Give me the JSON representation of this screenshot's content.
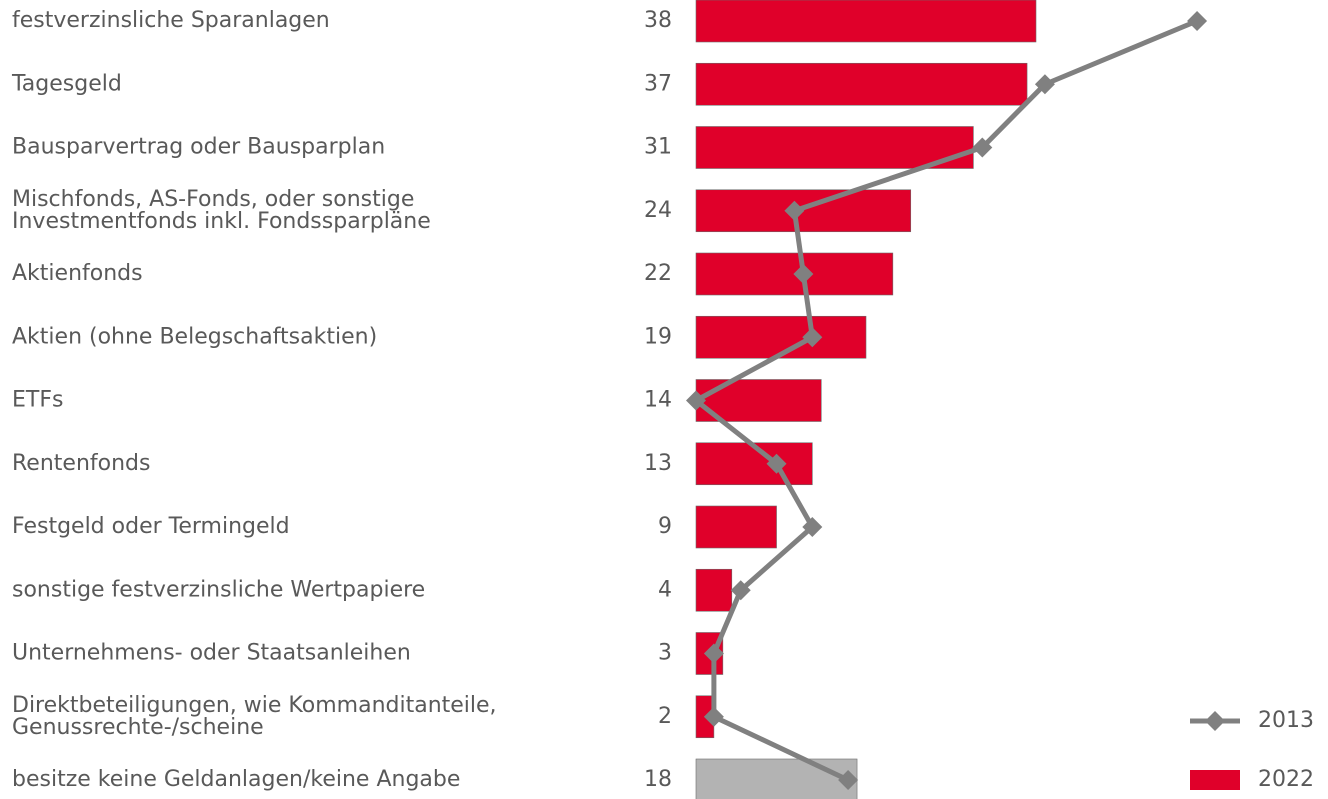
{
  "chart_data": {
    "type": "bar_line",
    "categories": [
      "festverzinsliche Sparanlagen",
      "Tagesgeld",
      "Bausparvertrag oder Bausparplan",
      "Mischfonds, AS-Fonds, oder sonstige\nInvestmentfonds inkl. Fondssparpläne",
      "Aktienfonds",
      "Aktien (ohne Belegschaftsaktien)",
      "ETFs",
      "Rentenfonds",
      "Festgeld oder Termingeld",
      "sonstige festverzinsliche Wertpapiere",
      "Unternehmens- oder Staatsanleihen",
      "Direktbeteiligungen, wie Kommanditanteile,\nGenussrechte-/scheine",
      "besitze keine Geldanlagen/keine Angabe"
    ],
    "series": [
      {
        "name": "2013",
        "type": "line",
        "color": "#808080",
        "values": [
          56,
          39,
          32,
          11,
          12,
          13,
          0,
          9,
          13,
          5,
          2,
          2,
          17
        ]
      },
      {
        "name": "2022",
        "type": "bar",
        "color": "#e0002a",
        "colors": [
          "#e0002a",
          "#e0002a",
          "#e0002a",
          "#e0002a",
          "#e0002a",
          "#e0002a",
          "#e0002a",
          "#e0002a",
          "#e0002a",
          "#e0002a",
          "#e0002a",
          "#e0002a",
          "#b3b3b3"
        ],
        "values": [
          38,
          37,
          31,
          24,
          22,
          19,
          14,
          13,
          9,
          4,
          3,
          2,
          18
        ]
      }
    ],
    "legend": "bottom-right"
  }
}
